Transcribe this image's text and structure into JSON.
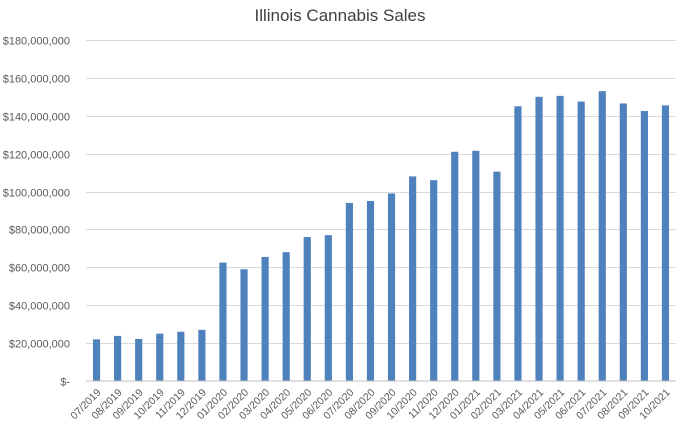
{
  "chart_data": {
    "type": "bar",
    "title": "Illinois Cannabis Sales",
    "xlabel": "",
    "ylabel": "",
    "ylim": [
      0,
      180000000
    ],
    "y_ticks": [
      0,
      20000000,
      40000000,
      60000000,
      80000000,
      100000000,
      120000000,
      140000000,
      160000000,
      180000000
    ],
    "y_tick_labels": [
      "$-",
      "$20,000,000",
      "$40,000,000",
      "$60,000,000",
      "$80,000,000",
      "$100,000,000",
      "$120,000,000",
      "$140,000,000",
      "$160,000,000",
      "$180,000,000"
    ],
    "grid": true,
    "legend": "none",
    "bar_color": "#4f81bd",
    "categories": [
      "07/2019",
      "08/2019",
      "09/2019",
      "10/2019",
      "11/2019",
      "12/2019",
      "01/2020",
      "02/2020",
      "03/2020",
      "04/2020",
      "05/2020",
      "06/2020",
      "07/2020",
      "08/2020",
      "09/2020",
      "10/2020",
      "11/2020",
      "12/2020",
      "01/2021",
      "02/2021",
      "03/2021",
      "04/2021",
      "05/2021",
      "06/2021",
      "07/2021",
      "08/2021",
      "09/2021",
      "10/2021"
    ],
    "values": [
      22000000,
      23800000,
      22200000,
      25000000,
      26000000,
      27000000,
      62500000,
      59000000,
      65500000,
      68000000,
      76000000,
      77000000,
      94000000,
      95000000,
      99000000,
      108000000,
      106000000,
      121000000,
      121500000,
      110500000,
      145000000,
      150000000,
      150500000,
      147500000,
      153000000,
      146500000,
      142500000,
      145500000
    ]
  }
}
